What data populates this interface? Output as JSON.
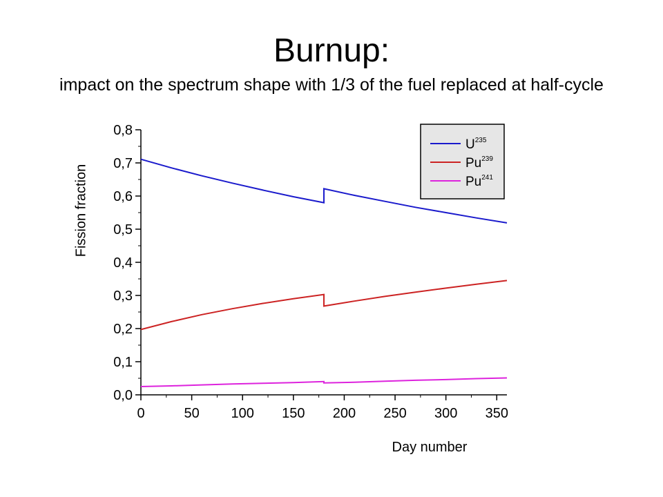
{
  "slide": {
    "title": "Burnup:",
    "subtitle": "impact on the spectrum shape with 1/3 of the fuel replaced at half-cycle"
  },
  "chart_data": {
    "type": "line",
    "xlabel": "Day number",
    "ylabel": "Fission fraction",
    "xlim": [
      0,
      360
    ],
    "ylim": [
      0.0,
      0.8
    ],
    "x_ticks": [
      0,
      50,
      100,
      150,
      200,
      250,
      300,
      350
    ],
    "y_ticks": [
      0.0,
      0.1,
      0.2,
      0.3,
      0.4,
      0.5,
      0.6,
      0.7,
      0.8
    ],
    "y_tick_labels": [
      "0,0",
      "0,1",
      "0,2",
      "0,3",
      "0,4",
      "0,5",
      "0,6",
      "0,7",
      "0,8"
    ],
    "grid": false,
    "legend_position": "top-right",
    "series": [
      {
        "name": "U",
        "superscript": "235",
        "color": "#1a1acc",
        "x": [
          0,
          30,
          60,
          90,
          120,
          150,
          180,
          180,
          210,
          240,
          270,
          300,
          330,
          360
        ],
        "y": [
          0.711,
          0.685,
          0.661,
          0.639,
          0.618,
          0.598,
          0.58,
          0.622,
          0.602,
          0.584,
          0.566,
          0.55,
          0.534,
          0.519
        ]
      },
      {
        "name": "Pu",
        "superscript": "239",
        "color": "#cc2222",
        "x": [
          0,
          30,
          60,
          90,
          120,
          150,
          180,
          180,
          210,
          240,
          270,
          300,
          330,
          360
        ],
        "y": [
          0.197,
          0.221,
          0.242,
          0.26,
          0.276,
          0.29,
          0.303,
          0.268,
          0.283,
          0.297,
          0.31,
          0.322,
          0.334,
          0.345
        ]
      },
      {
        "name": "Pu",
        "superscript": "241",
        "color": "#dd22dd",
        "x": [
          0,
          30,
          60,
          90,
          120,
          150,
          180,
          180,
          210,
          240,
          270,
          300,
          330,
          360
        ],
        "y": [
          0.025,
          0.027,
          0.03,
          0.033,
          0.035,
          0.037,
          0.04,
          0.036,
          0.038,
          0.041,
          0.044,
          0.046,
          0.049,
          0.051
        ]
      }
    ]
  }
}
